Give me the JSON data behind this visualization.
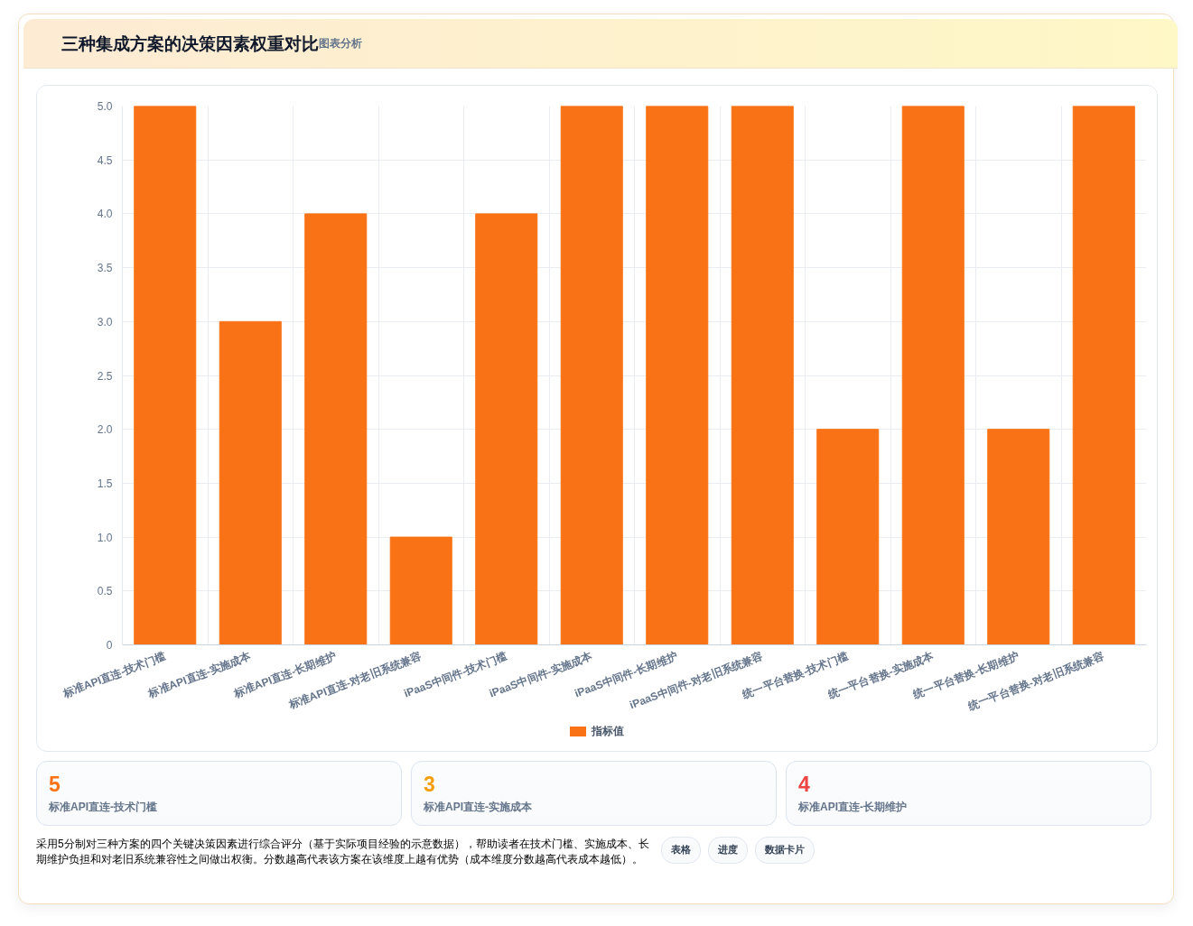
{
  "chart_data": {
    "type": "bar",
    "title": "三种集成方案的决策因素权重对比",
    "categories": [
      "标准API直连-技术门槛",
      "标准API直连-实施成本",
      "标准API直连-长期维护",
      "标准API直连-对老旧系统兼容",
      "iPaaS中间件-技术门槛",
      "iPaaS中间件-实施成本",
      "iPaaS中间件-长期维护",
      "iPaaS中间件-对老旧系统兼容",
      "统一平台替换-技术门槛",
      "统一平台替换-实施成本",
      "统一平台替换-长期维护",
      "统一平台替换-对老旧系统兼容"
    ],
    "series": [
      {
        "name": "指标值",
        "color": "#f97316",
        "values": [
          5,
          3,
          4,
          1,
          4,
          5,
          5,
          5,
          2,
          5,
          2,
          5
        ]
      }
    ],
    "ylim": [
      0,
      5
    ],
    "yticks": [
      0,
      0.5,
      {
        "value": 1,
        "label": "1.0"
      },
      1.5,
      {
        "value": 2,
        "label": "2.0"
      },
      2.5,
      {
        "value": 3,
        "label": "3.0"
      },
      3.5,
      {
        "value": 4,
        "label": "4.0"
      },
      4.5,
      {
        "value": 5,
        "label": "5.0"
      }
    ],
    "grid": true,
    "legend": "bottom",
    "annotations": [
      "图表分析",
      "5",
      "标准API直连-技术门槛",
      "3",
      "标准API直连-实施成本",
      "4",
      "标准API直连-长期维护",
      "采用5分制对三种方案的四个关键决策因素进行综合评分（基于实际项目经验的示意数据），帮助读者在技术门槛、实施成本、长期维护负担和对老旧系统兼容性之间做出权衡。分数越高代表该方案在该维度上越有优势（成本维度分数越高代表成本越低）。",
      "表格",
      "进度",
      "数据卡片"
    ]
  }
}
